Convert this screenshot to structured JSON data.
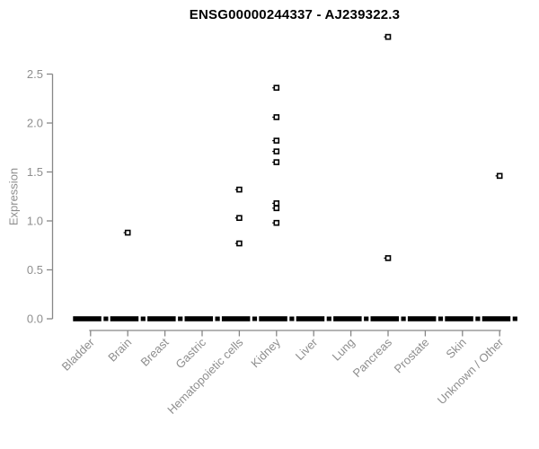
{
  "chart_data": {
    "type": "scatter",
    "subtype": "strip-plot",
    "title": "ENSG00000244337 - AJ239322.3",
    "xlabel": "",
    "ylabel": "Expression",
    "categories": [
      "Bladder",
      "Brain",
      "Breast",
      "Gastric",
      "Hematopoietic cells",
      "Kidney",
      "Liver",
      "Lung",
      "Pancreas",
      "Prostate",
      "Skin",
      "Unknown / Other"
    ],
    "yticks": [
      0.0,
      0.5,
      1.0,
      1.5,
      2.0,
      2.5
    ],
    "ylim": [
      0,
      2.95
    ],
    "grid": false,
    "legend": "none",
    "zero_marker_note": "every category shows a thick black dash of many overlapping points at expression 0",
    "points": [
      {
        "category": "Bladder",
        "values": [
          0
        ]
      },
      {
        "category": "Brain",
        "values": [
          0,
          0.88
        ]
      },
      {
        "category": "Breast",
        "values": [
          0
        ]
      },
      {
        "category": "Gastric",
        "values": [
          0
        ]
      },
      {
        "category": "Hematopoietic cells",
        "values": [
          0,
          0.77,
          1.03,
          1.32
        ]
      },
      {
        "category": "Kidney",
        "values": [
          0,
          0.98,
          1.13,
          1.18,
          1.6,
          1.71,
          1.82,
          2.06,
          2.36
        ]
      },
      {
        "category": "Liver",
        "values": [
          0
        ]
      },
      {
        "category": "Lung",
        "values": [
          0
        ]
      },
      {
        "category": "Pancreas",
        "values": [
          0,
          0.62,
          2.88
        ]
      },
      {
        "category": "Prostate",
        "values": [
          0
        ]
      },
      {
        "category": "Skin",
        "values": [
          0
        ]
      },
      {
        "category": "Unknown / Other",
        "values": [
          0,
          1.46
        ]
      }
    ],
    "colors": {
      "point_stroke": "#000000",
      "point_fill": "#ffffff",
      "zero_dash": "#000000",
      "axis_line": "#878787",
      "tick_label": "#8e8e8e",
      "title": "#000000",
      "background": "#ffffff"
    }
  }
}
